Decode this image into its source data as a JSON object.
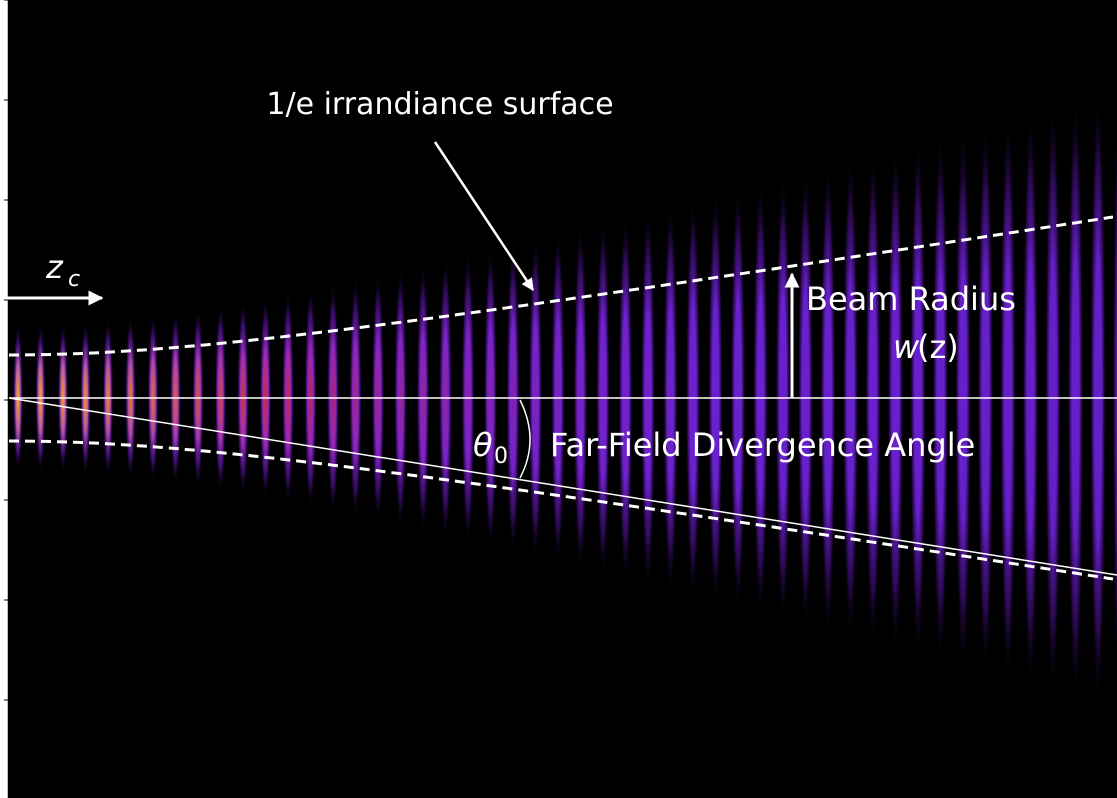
{
  "annotations": {
    "surface_label": "1/e irrandiance surface",
    "z_symbol": "z",
    "z_subscript": "c",
    "radius_label": "Beam Radius",
    "radius_w": "w",
    "radius_arg": "(z)",
    "theta_symbol": "θ",
    "theta_subscript": "0",
    "angle_label": "Far-Field Divergence Angle"
  }
}
